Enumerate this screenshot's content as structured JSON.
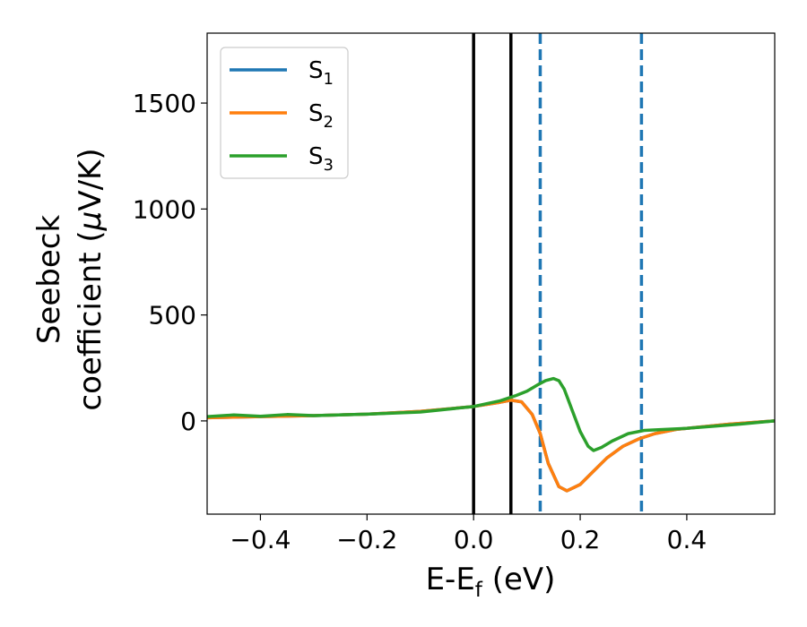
{
  "chart_data": {
    "type": "line",
    "xlabel": {
      "main": "E-E",
      "sub": "f",
      "suffix": " (eV)"
    },
    "ylabel": {
      "line1": "Seebeck",
      "line2_prefix": "coefficient  (",
      "mu": "μ",
      "line2_suffix": "V/K)"
    },
    "xlim": [
      -0.5,
      0.565
    ],
    "ylim": [
      -440,
      1830
    ],
    "xticks": [
      -0.4,
      -0.2,
      0.0,
      0.2,
      0.4
    ],
    "xtick_labels": [
      "−0.4",
      "−0.2",
      "0.0",
      "0.2",
      "0.4"
    ],
    "yticks": [
      0,
      500,
      1000,
      1500
    ],
    "ytick_labels": [
      "0",
      "500",
      "1000",
      "1500"
    ],
    "grid": false,
    "legend_position": "upper-left",
    "series": [
      {
        "name": "S",
        "sub": "1",
        "color": "#1f77b4",
        "x": [
          -0.5,
          -0.4,
          -0.3,
          -0.2,
          -0.1,
          0.0,
          0.05,
          0.07,
          0.09,
          0.11,
          0.125,
          0.14,
          0.16,
          0.175,
          0.2,
          0.22,
          0.25,
          0.28,
          0.31,
          0.34,
          0.38,
          0.42,
          0.48,
          0.565
        ],
        "y": [
          15,
          20,
          25,
          32,
          45,
          68,
          88,
          98,
          90,
          30,
          -60,
          -200,
          -310,
          -330,
          -300,
          -250,
          -175,
          -120,
          -85,
          -60,
          -40,
          -30,
          -15,
          0
        ]
      },
      {
        "name": "S",
        "sub": "2",
        "color": "#ff7f0e",
        "x": [
          -0.5,
          -0.4,
          -0.3,
          -0.2,
          -0.1,
          0.0,
          0.05,
          0.07,
          0.09,
          0.11,
          0.125,
          0.14,
          0.16,
          0.175,
          0.2,
          0.22,
          0.25,
          0.28,
          0.31,
          0.34,
          0.38,
          0.42,
          0.48,
          0.565
        ],
        "y": [
          15,
          20,
          25,
          32,
          45,
          68,
          88,
          98,
          90,
          30,
          -60,
          -200,
          -310,
          -330,
          -300,
          -250,
          -175,
          -120,
          -85,
          -60,
          -40,
          -30,
          -15,
          0
        ]
      },
      {
        "name": "S",
        "sub": "3",
        "color": "#2ca02c",
        "x": [
          -0.5,
          -0.45,
          -0.4,
          -0.35,
          -0.3,
          -0.2,
          -0.1,
          0.0,
          0.05,
          0.08,
          0.1,
          0.12,
          0.135,
          0.15,
          0.16,
          0.17,
          0.185,
          0.2,
          0.215,
          0.225,
          0.24,
          0.26,
          0.29,
          0.32,
          0.36,
          0.4,
          0.45,
          0.5,
          0.565
        ],
        "y": [
          20,
          28,
          22,
          30,
          25,
          32,
          42,
          68,
          95,
          120,
          140,
          170,
          190,
          200,
          190,
          150,
          50,
          -50,
          -120,
          -140,
          -125,
          -95,
          -60,
          -45,
          -40,
          -35,
          -25,
          -15,
          0
        ]
      }
    ],
    "vlines": [
      {
        "x": 0.0,
        "style": "solid",
        "color": "#000000"
      },
      {
        "x": 0.07,
        "style": "solid",
        "color": "#000000"
      },
      {
        "x": 0.125,
        "style": "dashed",
        "color": "#1f77b4"
      },
      {
        "x": 0.315,
        "style": "dashed",
        "color": "#1f77b4"
      }
    ]
  }
}
